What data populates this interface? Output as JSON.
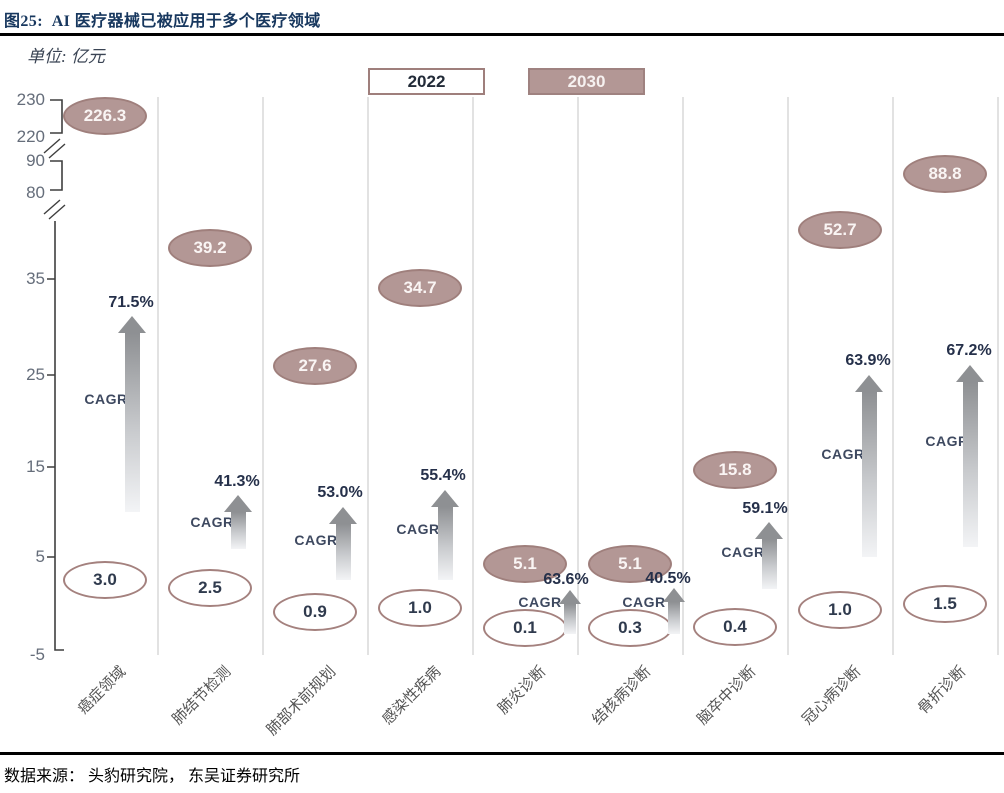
{
  "header": {
    "title": "图25:  AI 医疗器械已被应用于多个医疗领域"
  },
  "chart": {
    "unit_label": "单位: 亿元",
    "legend": [
      {
        "label": "2022",
        "style": "outline"
      },
      {
        "label": "2030",
        "style": "filled"
      }
    ]
  },
  "chart_data": {
    "type": "scatter",
    "title": "AI 医疗器械已被应用于多个医疗领域",
    "unit": "亿元",
    "categories": [
      "癌症领域",
      "肺结节检测",
      "肺部术前规划",
      "感染性疾病",
      "肺炎诊断",
      "结核病诊断",
      "脑卒中诊断",
      "冠心病诊断",
      "骨折诊断"
    ],
    "series": [
      {
        "name": "2022",
        "values": [
          3.0,
          2.5,
          0.9,
          1.0,
          0.1,
          0.3,
          0.4,
          1.0,
          1.5
        ],
        "labels": [
          "3.0",
          "2.5",
          "0.9",
          "1.0",
          "0.1",
          "0.3",
          "0.4",
          "1.0",
          "1.5"
        ]
      },
      {
        "name": "2030",
        "values": [
          226.3,
          39.2,
          27.6,
          34.7,
          5.1,
          5.1,
          15.8,
          52.7,
          88.8
        ],
        "labels": [
          "226.3",
          "39.2",
          "27.6",
          "34.7",
          "5.1",
          "5.1",
          "15.8",
          "52.7",
          "88.8"
        ]
      }
    ],
    "cagr_title": "CAGR",
    "cagr_values": [
      "71.5%",
      "41.3%",
      "53.0%",
      "55.4%",
      "63.6%",
      "40.5%",
      "59.1%",
      "63.9%",
      "67.2%"
    ],
    "y_axis": {
      "tick_labels": [
        "230",
        "220",
        "90",
        "80",
        "35",
        "25",
        "15",
        "5",
        "-5"
      ],
      "tick_values": [
        230,
        220,
        90,
        80,
        35,
        25,
        15,
        5,
        -5
      ],
      "broken_axis": true,
      "breaks_between": [
        [
          "220",
          "90"
        ],
        [
          "80",
          "35"
        ]
      ]
    },
    "legend": [
      "2022",
      "2030"
    ],
    "legend_position": "top",
    "grid": "vertical-category-separators"
  },
  "footer": {
    "source": "数据来源： 头豹研究院， 东吴证券研究所"
  },
  "colors": {
    "filled_ellipse": "#b39795",
    "ellipse_border": "#9f7f7c",
    "white_ellipse_border": "#a4817e",
    "arrow_gray": "#8e9093",
    "separator_gray": "#d9d9d9",
    "axis_dark": "#3f3f3f",
    "title_navy": "#17375e",
    "value_text_dark": "#2f3a4d"
  }
}
